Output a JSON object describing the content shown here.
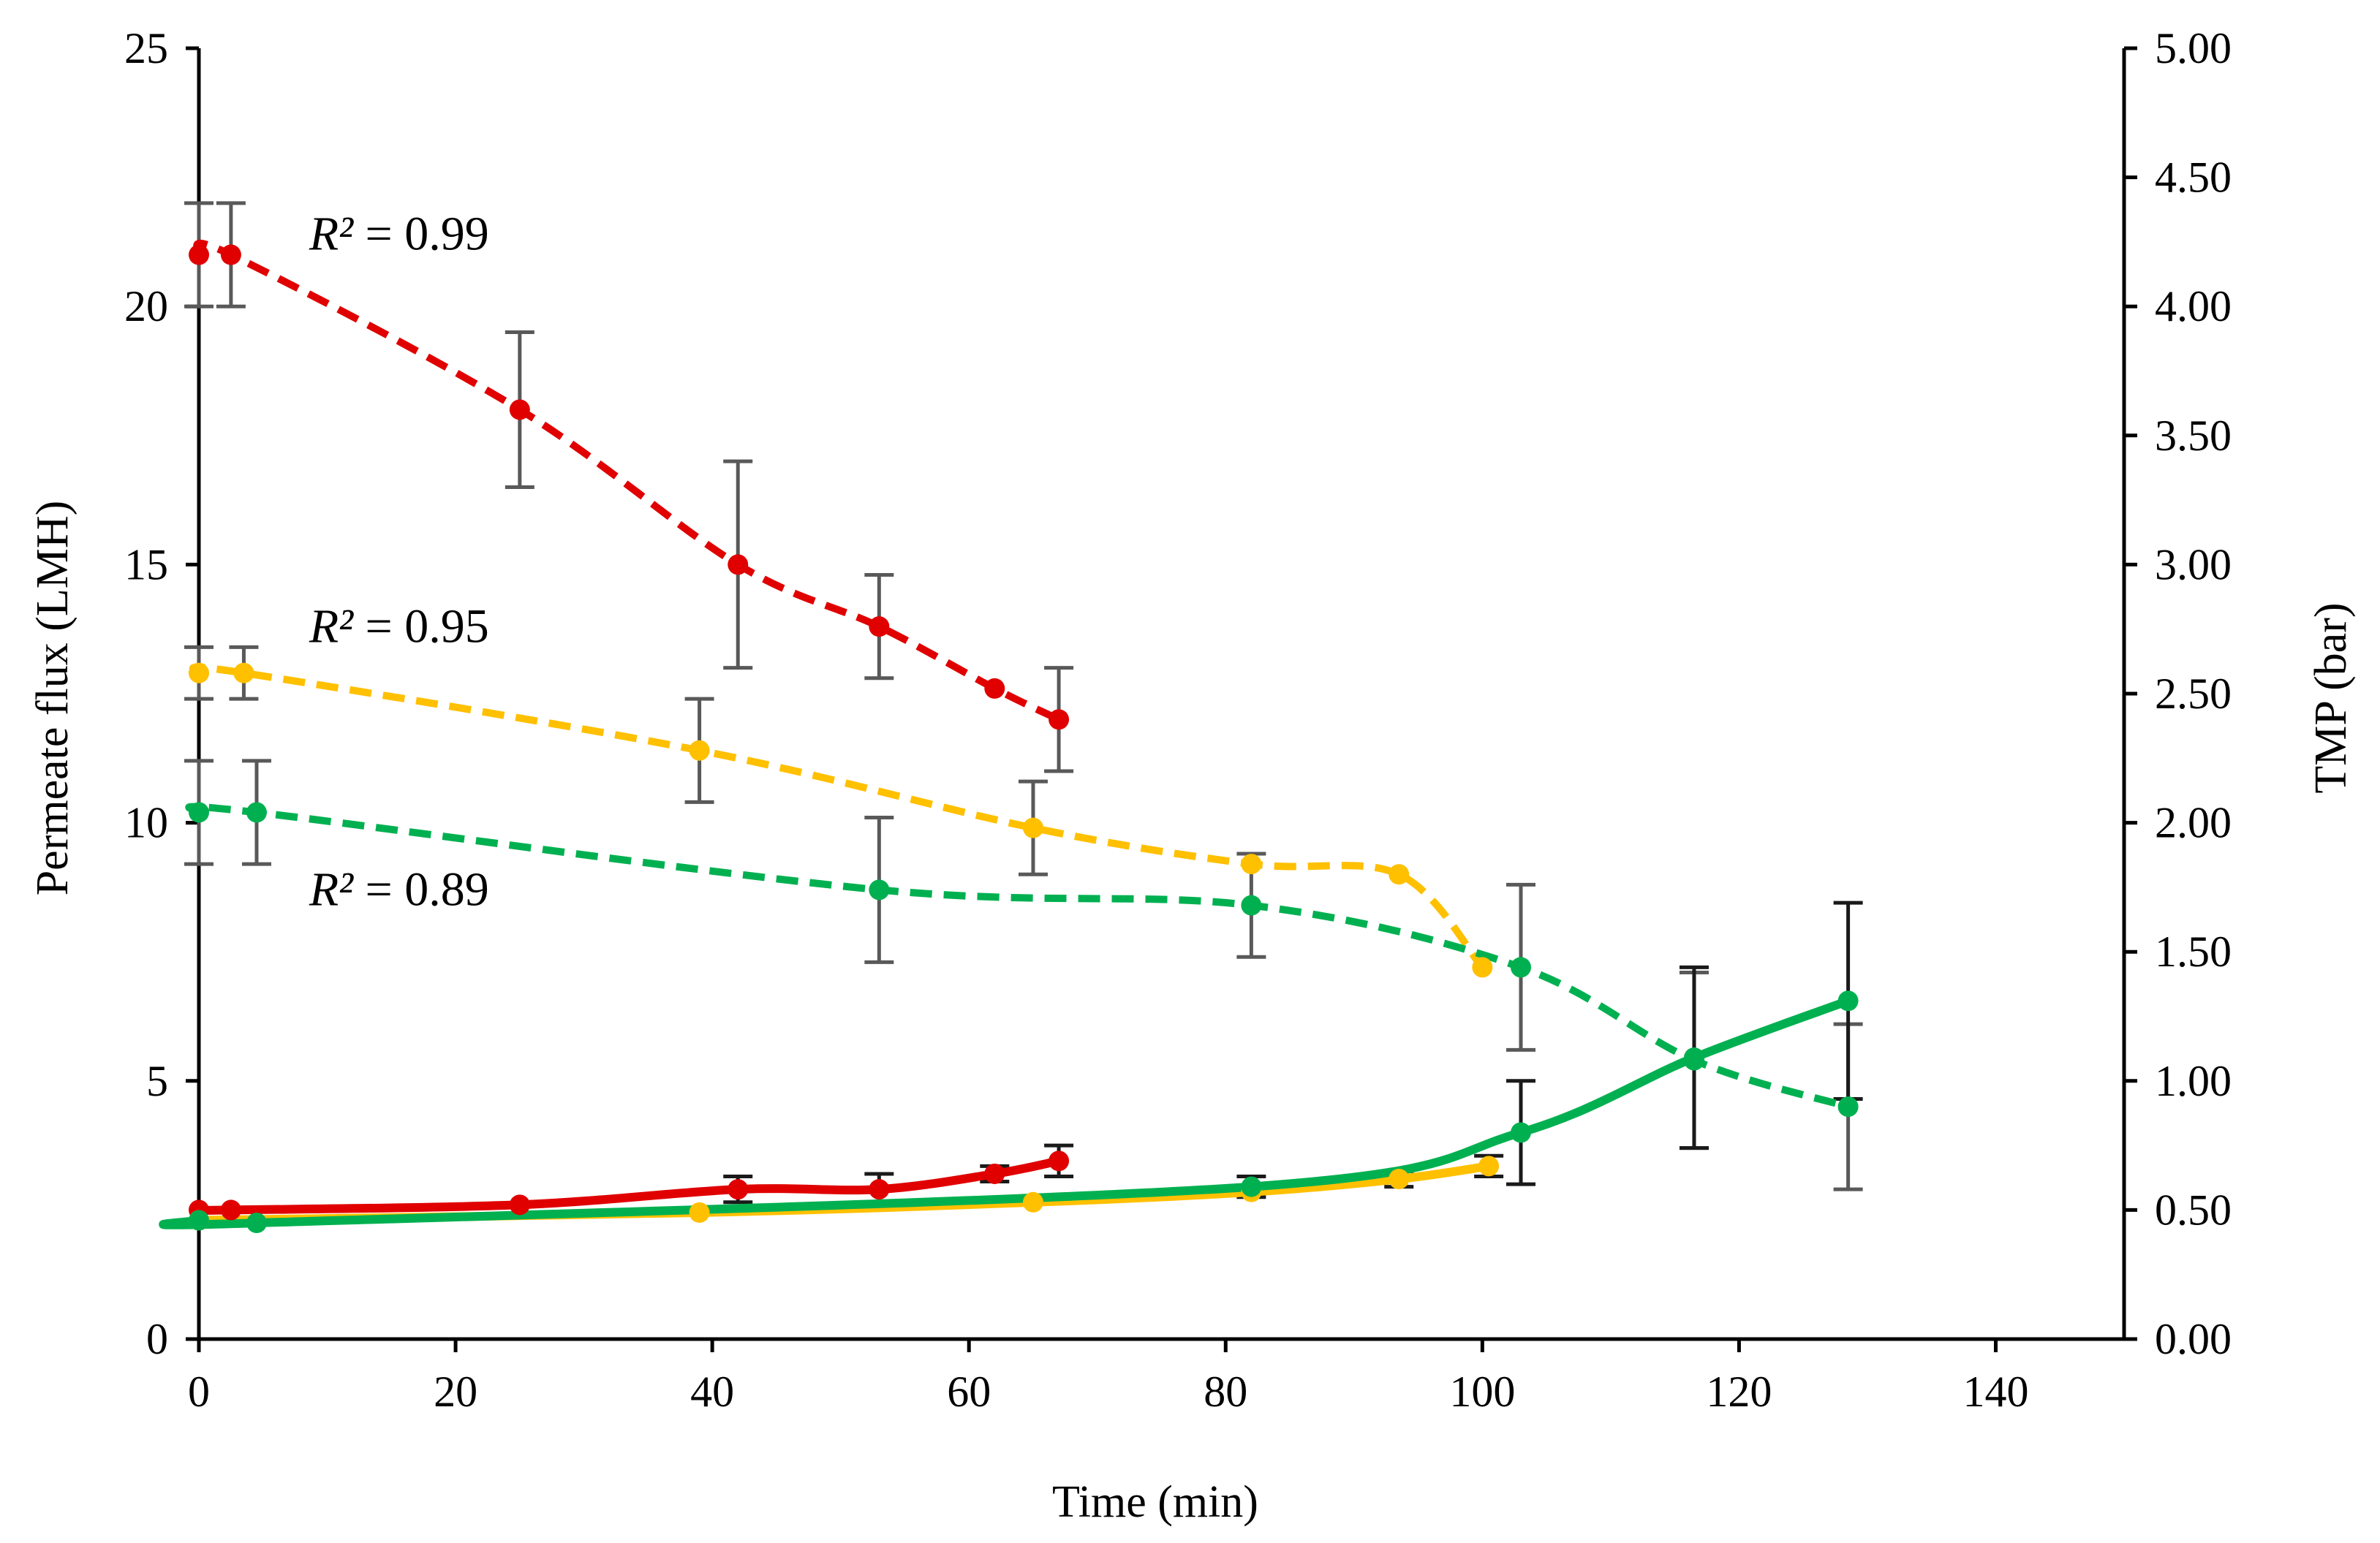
{
  "chart_data": {
    "type": "line",
    "xlabel": "Time (min)",
    "ylabel": "Permeate flux (LMH)",
    "y2label": "TMP (bar)",
    "xlim": [
      0,
      150
    ],
    "ylim": [
      0,
      25
    ],
    "y2lim": [
      0,
      5
    ],
    "x_ticks": [
      0,
      20,
      40,
      60,
      80,
      100,
      120,
      140
    ],
    "y_ticks": [
      0,
      5,
      10,
      15,
      20,
      25
    ],
    "y2_ticks": [
      "0.00",
      "0.50",
      "1.00",
      "1.50",
      "2.00",
      "2.50",
      "3.00",
      "3.50",
      "4.00",
      "4.50",
      "5.00"
    ],
    "grid": false,
    "annotations": [
      {
        "text_italic": "R²",
        "text_rest": " = 0.99",
        "series": "flux-red",
        "x": 7,
        "y": 21.1
      },
      {
        "text_italic": "R²",
        "text_rest": " = 0.95",
        "series": "flux-yellow",
        "x": 7,
        "y": 13.5
      },
      {
        "text_italic": "R²",
        "text_rest": " = 0.89",
        "series": "flux-green",
        "x": 7,
        "y": 8.4
      }
    ],
    "series": [
      {
        "name": "flux-red",
        "axis": "left",
        "style": "dashed",
        "color": "#e00000",
        "x": [
          0,
          2.5,
          25,
          42,
          53,
          62,
          67
        ],
        "y": [
          21.0,
          21.0,
          18.0,
          15.0,
          13.8,
          12.6,
          12.0
        ],
        "err": [
          1.0,
          1.0,
          1.5,
          2.0,
          1.0,
          null,
          1.0
        ]
      },
      {
        "name": "flux-yellow",
        "axis": "left",
        "style": "dashed",
        "color": "#ffc000",
        "x": [
          0,
          3.5,
          39,
          65,
          82,
          93.5,
          100
        ],
        "y": [
          12.9,
          12.9,
          11.4,
          9.9,
          9.2,
          9.0,
          7.2
        ],
        "err": [
          0.5,
          0.5,
          1.0,
          0.9,
          null,
          null,
          null
        ]
      },
      {
        "name": "flux-green",
        "axis": "left",
        "style": "dashed",
        "color": "#00b050",
        "x": [
          0,
          4.5,
          53,
          82,
          103,
          116.5,
          128.5
        ],
        "y": [
          10.2,
          10.2,
          8.7,
          8.4,
          7.2,
          5.4,
          4.5
        ],
        "err": [
          1.0,
          1.0,
          1.4,
          1.0,
          1.6,
          1.7,
          1.6
        ]
      },
      {
        "name": "tmp-red",
        "axis": "right",
        "style": "solid",
        "color": "#e00000",
        "x": [
          0,
          2.5,
          25,
          42,
          53,
          62,
          67
        ],
        "y": [
          0.5,
          0.5,
          0.52,
          0.58,
          0.58,
          0.64,
          0.69
        ],
        "err": [
          null,
          null,
          null,
          0.05,
          0.06,
          0.03,
          0.06
        ]
      },
      {
        "name": "tmp-yellow",
        "axis": "right",
        "style": "solid",
        "color": "#ffc000",
        "x": [
          0,
          39,
          65,
          82,
          93.5,
          100.5
        ],
        "y": [
          0.46,
          0.49,
          0.53,
          0.57,
          0.62,
          0.67
        ],
        "err": [
          null,
          null,
          null,
          null,
          0.03,
          0.04
        ]
      },
      {
        "name": "tmp-green",
        "axis": "right",
        "style": "solid",
        "color": "#00b050",
        "x": [
          0,
          4.5,
          82,
          103,
          116.5,
          128.5
        ],
        "y": [
          0.46,
          0.45,
          0.59,
          0.8,
          1.09,
          1.31
        ],
        "err": [
          null,
          null,
          0.04,
          0.2,
          0.35,
          0.38
        ]
      }
    ]
  }
}
